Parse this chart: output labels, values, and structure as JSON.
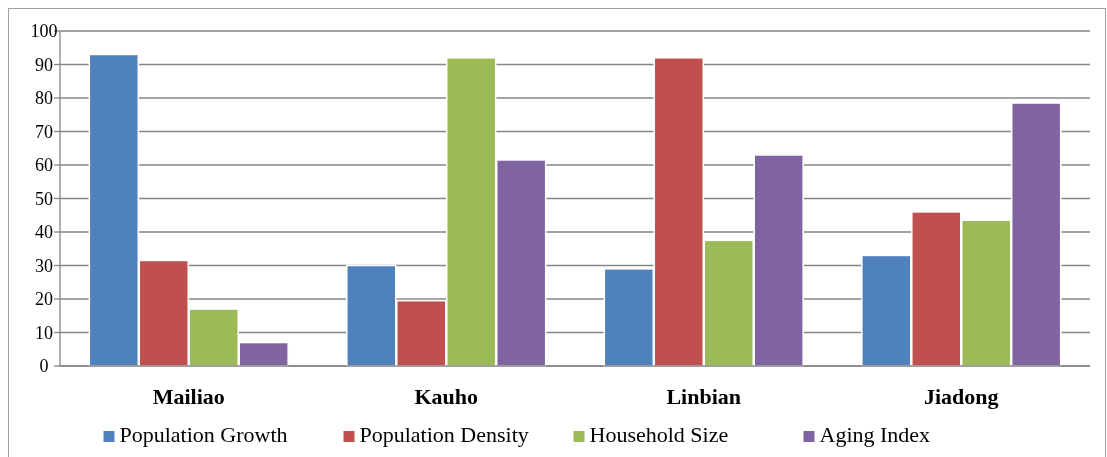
{
  "chart_data": {
    "type": "bar",
    "categories": [
      "Mailiao",
      "Kauho",
      "Linbian",
      "Jiadong"
    ],
    "series": [
      {
        "name": "Population Growth",
        "color": "#4f81bd",
        "values": [
          93,
          30,
          29,
          33
        ]
      },
      {
        "name": "Population Density",
        "color": "#c0504d",
        "values": [
          31.5,
          19.5,
          92,
          46
        ]
      },
      {
        "name": "Household Size",
        "color": "#9bbb59",
        "values": [
          17,
          92,
          37.5,
          43.5
        ]
      },
      {
        "name": "Aging Index",
        "color": "#8064a2",
        "values": [
          7,
          61.5,
          63,
          78.5
        ]
      }
    ],
    "ylim": [
      0,
      100
    ],
    "yticks": [
      0,
      10,
      20,
      30,
      40,
      50,
      60,
      70,
      80,
      90,
      100
    ],
    "grid": "y",
    "legend": "bottom"
  }
}
